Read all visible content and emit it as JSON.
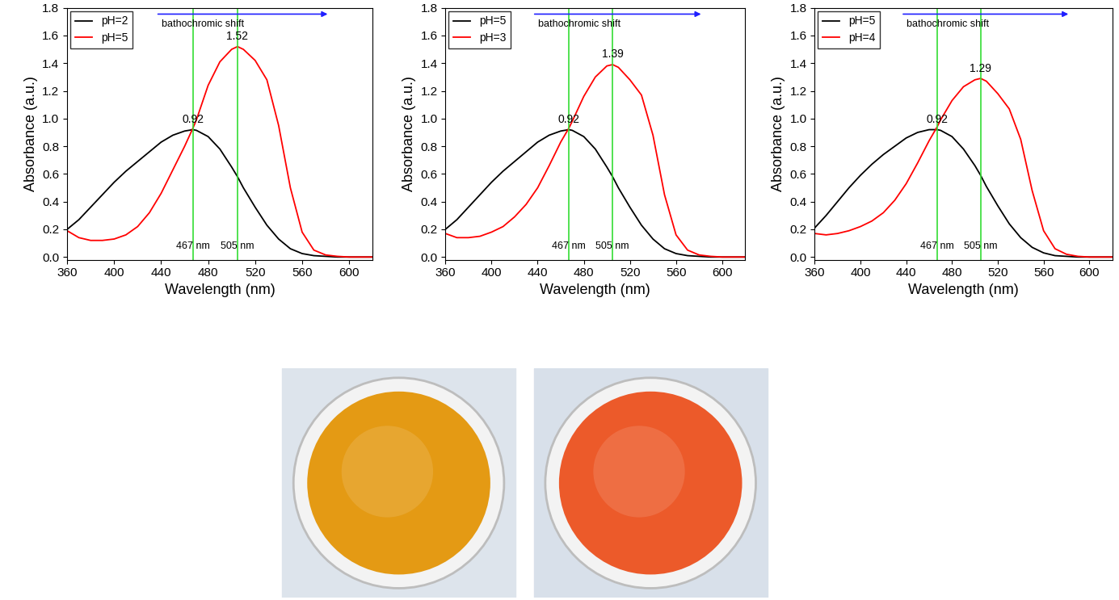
{
  "chart_data": [
    {
      "type": "line",
      "x_label": "Wavelength (nm)",
      "y_label": "Absorbance (a.u.)",
      "x": [
        360,
        370,
        380,
        390,
        400,
        410,
        420,
        430,
        440,
        450,
        460,
        467,
        470,
        480,
        490,
        500,
        505,
        510,
        520,
        530,
        540,
        550,
        560,
        570,
        580,
        590,
        600,
        610,
        620
      ],
      "series": [
        {
          "name": "pH=2",
          "color": "#000000",
          "values": [
            0.2,
            0.27,
            0.36,
            0.45,
            0.54,
            0.62,
            0.69,
            0.76,
            0.83,
            0.88,
            0.91,
            0.92,
            0.915,
            0.87,
            0.78,
            0.65,
            0.58,
            0.5,
            0.36,
            0.23,
            0.13,
            0.06,
            0.025,
            0.01,
            0.005,
            0.0,
            0.0,
            0.0,
            0.0
          ]
        },
        {
          "name": "pH=5",
          "color": "#ff0000",
          "values": [
            0.19,
            0.14,
            0.12,
            0.12,
            0.13,
            0.16,
            0.22,
            0.32,
            0.46,
            0.63,
            0.8,
            0.93,
            0.99,
            1.24,
            1.41,
            1.5,
            1.52,
            1.5,
            1.42,
            1.28,
            0.95,
            0.5,
            0.18,
            0.05,
            0.015,
            0.005,
            0.0,
            0.0,
            0.0
          ]
        }
      ],
      "xlim": [
        360,
        620
      ],
      "xticks": [
        360,
        400,
        440,
        480,
        520,
        560,
        600
      ],
      "ylim": [
        -0.02,
        1.8
      ],
      "yticks": [
        0.0,
        0.2,
        0.4,
        0.6,
        0.8,
        1.0,
        1.2,
        1.4,
        1.6,
        1.8
      ],
      "legend": "upper left",
      "reference_lines": [
        {
          "x": 467,
          "label": "467 nm",
          "color": "#33dd33"
        },
        {
          "x": 505,
          "label": "505 nm",
          "color": "#33dd33"
        }
      ],
      "peak_labels": [
        {
          "x": 467,
          "value": 0.92
        },
        {
          "x": 505,
          "value": 1.52
        }
      ],
      "annotation": {
        "text": "bathochromic shift",
        "color": "#1f1fff"
      }
    },
    {
      "type": "line",
      "x_label": "Wavelength (nm)",
      "y_label": "Absorbance (a.u.)",
      "x": [
        360,
        370,
        380,
        390,
        400,
        410,
        420,
        430,
        440,
        450,
        460,
        467,
        470,
        480,
        490,
        500,
        505,
        510,
        520,
        530,
        540,
        550,
        560,
        570,
        580,
        590,
        600,
        610,
        620
      ],
      "series": [
        {
          "name": "pH=5",
          "color": "#000000",
          "values": [
            0.2,
            0.27,
            0.36,
            0.45,
            0.54,
            0.62,
            0.69,
            0.76,
            0.83,
            0.88,
            0.91,
            0.92,
            0.915,
            0.87,
            0.78,
            0.65,
            0.58,
            0.5,
            0.36,
            0.23,
            0.13,
            0.06,
            0.025,
            0.01,
            0.005,
            0.0,
            0.0,
            0.0,
            0.0
          ]
        },
        {
          "name": "pH=3",
          "color": "#ff0000",
          "values": [
            0.17,
            0.14,
            0.14,
            0.15,
            0.18,
            0.22,
            0.29,
            0.38,
            0.5,
            0.66,
            0.83,
            0.93,
            0.98,
            1.16,
            1.3,
            1.38,
            1.39,
            1.37,
            1.28,
            1.17,
            0.88,
            0.45,
            0.16,
            0.05,
            0.015,
            0.005,
            0.0,
            0.0,
            0.0
          ]
        }
      ],
      "xlim": [
        360,
        620
      ],
      "xticks": [
        360,
        400,
        440,
        480,
        520,
        560,
        600
      ],
      "ylim": [
        -0.02,
        1.8
      ],
      "yticks": [
        0.0,
        0.2,
        0.4,
        0.6,
        0.8,
        1.0,
        1.2,
        1.4,
        1.6,
        1.8
      ],
      "legend": "upper left",
      "reference_lines": [
        {
          "x": 467,
          "label": "467 nm",
          "color": "#33dd33"
        },
        {
          "x": 505,
          "label": "505 nm",
          "color": "#33dd33"
        }
      ],
      "peak_labels": [
        {
          "x": 467,
          "value": 0.92
        },
        {
          "x": 505,
          "value": 1.39
        }
      ],
      "annotation": {
        "text": "bathochromic shift",
        "color": "#1f1fff"
      }
    },
    {
      "type": "line",
      "x_label": "Wavelength (nm)",
      "y_label": "Absorbance (a.u.)",
      "x": [
        360,
        370,
        380,
        390,
        400,
        410,
        420,
        430,
        440,
        450,
        460,
        467,
        470,
        480,
        490,
        500,
        505,
        510,
        520,
        530,
        540,
        550,
        560,
        570,
        580,
        590,
        600,
        610,
        620
      ],
      "series": [
        {
          "name": "pH=5",
          "color": "#000000",
          "values": [
            0.21,
            0.3,
            0.4,
            0.5,
            0.59,
            0.67,
            0.74,
            0.8,
            0.86,
            0.9,
            0.92,
            0.92,
            0.915,
            0.87,
            0.78,
            0.66,
            0.59,
            0.51,
            0.37,
            0.24,
            0.14,
            0.07,
            0.03,
            0.01,
            0.005,
            0.0,
            0.0,
            0.0,
            0.0
          ]
        },
        {
          "name": "pH=4",
          "color": "#ff0000",
          "values": [
            0.17,
            0.16,
            0.17,
            0.19,
            0.22,
            0.26,
            0.32,
            0.41,
            0.53,
            0.68,
            0.84,
            0.94,
            0.99,
            1.13,
            1.23,
            1.28,
            1.29,
            1.27,
            1.18,
            1.07,
            0.85,
            0.48,
            0.19,
            0.06,
            0.02,
            0.005,
            0.0,
            0.0,
            0.0
          ]
        }
      ],
      "xlim": [
        360,
        620
      ],
      "xticks": [
        360,
        400,
        440,
        480,
        520,
        560,
        600
      ],
      "ylim": [
        -0.02,
        1.8
      ],
      "yticks": [
        0.0,
        0.2,
        0.4,
        0.6,
        0.8,
        1.0,
        1.2,
        1.4,
        1.6,
        1.8
      ],
      "legend": "upper left",
      "reference_lines": [
        {
          "x": 467,
          "label": "467 nm",
          "color": "#33dd33"
        },
        {
          "x": 505,
          "label": "505 nm",
          "color": "#33dd33"
        }
      ],
      "peak_labels": [
        {
          "x": 467,
          "value": 0.92
        },
        {
          "x": 505,
          "value": 1.29
        }
      ],
      "annotation": {
        "text": "bathochromic shift",
        "color": "#1f1fff"
      }
    }
  ]
}
